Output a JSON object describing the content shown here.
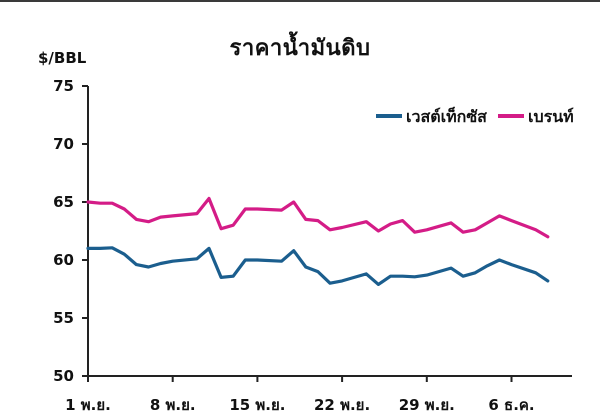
{
  "chart_data": {
    "type": "line",
    "title": "ราคาน้ำมันดิบ",
    "ylabel": "$/BBL",
    "xlabel": "",
    "ylim": [
      50,
      75
    ],
    "yticks": [
      50,
      55,
      60,
      65,
      70,
      75
    ],
    "grid": false,
    "legend_position": "top-right",
    "x_tick_labels": [
      "1 พ.ย.",
      "8 พ.ย.",
      "15 พ.ย.",
      "22 พ.ย.",
      "29 พ.ย.",
      "6 ธ.ค."
    ],
    "x_tick_days": [
      1,
      8,
      15,
      22,
      29,
      36
    ],
    "x_domain": [
      1,
      41
    ],
    "series": [
      {
        "name": "เวสต์เท็กซัส",
        "color": "#1b5e8e",
        "x": [
          1,
          2,
          3,
          4,
          5,
          6,
          7,
          8,
          10,
          11,
          12,
          13,
          14,
          15,
          17,
          18,
          19,
          20,
          21,
          22,
          24,
          25,
          26,
          27,
          28,
          29,
          31,
          32,
          33,
          34,
          35,
          36,
          38,
          39
        ],
        "y": [
          61.0,
          61.0,
          61.05,
          60.5,
          59.6,
          59.4,
          59.7,
          59.9,
          60.1,
          61.0,
          58.5,
          58.6,
          60.0,
          60.0,
          59.9,
          60.8,
          59.4,
          59.0,
          58.0,
          58.2,
          58.8,
          57.9,
          58.6,
          58.6,
          58.55,
          58.7,
          59.3,
          58.6,
          58.9,
          59.5,
          60.0,
          59.6,
          58.9,
          58.2
        ]
      },
      {
        "name": "เบรนท์",
        "color": "#d41c87",
        "x": [
          1,
          2,
          3,
          4,
          5,
          6,
          7,
          8,
          10,
          11,
          12,
          13,
          14,
          15,
          17,
          18,
          19,
          20,
          21,
          22,
          24,
          25,
          26,
          27,
          28,
          29,
          31,
          32,
          33,
          34,
          35,
          36,
          38,
          39
        ],
        "y": [
          65.0,
          64.9,
          64.9,
          64.4,
          63.5,
          63.3,
          63.7,
          63.8,
          64.0,
          65.3,
          62.7,
          63.0,
          64.4,
          64.4,
          64.3,
          65.0,
          63.5,
          63.4,
          62.6,
          62.8,
          63.3,
          62.5,
          63.1,
          63.4,
          62.4,
          62.6,
          63.2,
          62.4,
          62.6,
          63.2,
          63.8,
          63.4,
          62.6,
          62.0
        ]
      }
    ]
  }
}
